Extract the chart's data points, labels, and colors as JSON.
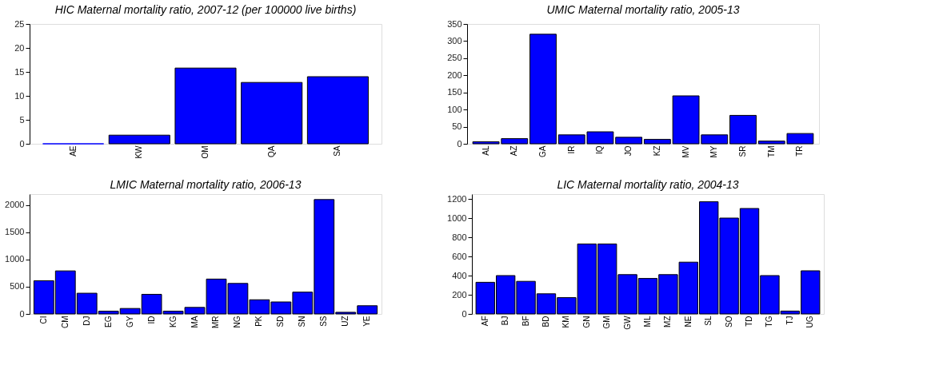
{
  "chart_data": [
    {
      "type": "bar",
      "title": "HIC Maternal mortality ratio, 2007-12 (per 100000 live births)",
      "categories": [
        "AE",
        "KW",
        "OM",
        "QA",
        "SA"
      ],
      "values": [
        0,
        1.8,
        15.8,
        12.8,
        14
      ],
      "color": "#0000ff",
      "ylim": [
        0,
        25
      ],
      "yticks": [
        0,
        5,
        10,
        15,
        20,
        25
      ],
      "grid": false
    },
    {
      "type": "bar",
      "title": "UMIC Maternal mortality ratio, 2005-13",
      "categories": [
        "AL",
        "AZ",
        "GA",
        "IR",
        "IQ",
        "JO",
        "KZ",
        "MV",
        "MY",
        "SR",
        "TM",
        "TR"
      ],
      "values": [
        6,
        15,
        320,
        26,
        35,
        19,
        13,
        140,
        26,
        83,
        8,
        30
      ],
      "color": "#0000ff",
      "ylim": [
        0,
        350
      ],
      "yticks": [
        0,
        50,
        100,
        150,
        200,
        250,
        300,
        350
      ],
      "grid": false
    },
    {
      "type": "bar",
      "title": "LMIC Maternal mortality ratio, 2006-13",
      "categories": [
        "CI",
        "CM",
        "DJ",
        "EG",
        "GY",
        "ID",
        "KG",
        "MA",
        "MR",
        "NG",
        "PK",
        "SD",
        "SN",
        "SS",
        "UZ",
        "YE"
      ],
      "values": [
        610,
        790,
        380,
        50,
        100,
        360,
        50,
        120,
        640,
        560,
        260,
        220,
        400,
        2100,
        30,
        150
      ],
      "color": "#0000ff",
      "ylim": [
        0,
        2200
      ],
      "yticks": [
        0,
        500,
        1000,
        1500,
        2000
      ],
      "grid": false
    },
    {
      "type": "bar",
      "title": "LIC Maternal mortality ratio, 2004-13",
      "categories": [
        "AF",
        "BJ",
        "BF",
        "BD",
        "KM",
        "GN",
        "GM",
        "GW",
        "ML",
        "MZ",
        "NE",
        "SL",
        "SO",
        "TD",
        "TG",
        "TJ",
        "UG"
      ],
      "values": [
        330,
        400,
        340,
        210,
        170,
        730,
        730,
        410,
        370,
        410,
        540,
        1170,
        1000,
        1100,
        400,
        30,
        450
      ],
      "color": "#0000ff",
      "ylim": [
        0,
        1250
      ],
      "yticks": [
        0,
        200,
        400,
        600,
        800,
        1000,
        1200
      ],
      "grid": false
    }
  ]
}
